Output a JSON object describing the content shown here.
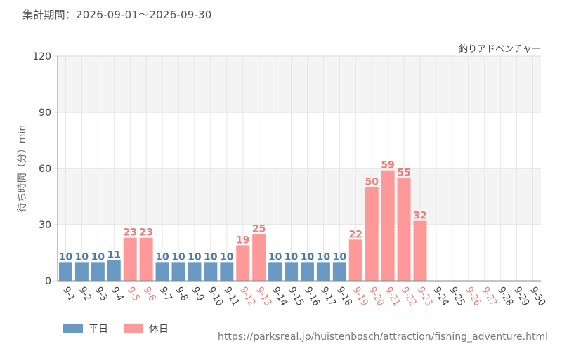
{
  "header": {
    "period": "集計期間：2026-09-01～2026-09-30"
  },
  "colors": {
    "weekday": "#6a9ac4",
    "holiday": "#ff9999",
    "weekday_label": "#4a7aa8",
    "holiday_label": "#f07b7b",
    "band": "#f4f4f4"
  },
  "legend": {
    "weekday": "平日",
    "holiday": "休日"
  },
  "source": "https://parksreal.jp/huistenbosch/attraction/fishing_adventure.html",
  "chart_data": {
    "type": "bar",
    "series_title": "釣りアドベンチャー",
    "ylabel": "待ち時間（分）min",
    "xlabel": "",
    "ylim": [
      0,
      120
    ],
    "yticks": [
      0,
      30,
      60,
      90,
      120
    ],
    "grid": true,
    "legend_position": "bottom-left",
    "categories": [
      "9-1",
      "9-2",
      "9-3",
      "9-4",
      "9-5",
      "9-6",
      "9-7",
      "9-8",
      "9-9",
      "9-10",
      "9-11",
      "9-12",
      "9-13",
      "9-14",
      "9-15",
      "9-16",
      "9-17",
      "9-18",
      "9-19",
      "9-20",
      "9-21",
      "9-22",
      "9-23",
      "9-24",
      "9-25",
      "9-26",
      "9-27",
      "9-28",
      "9-29",
      "9-30"
    ],
    "values": [
      10,
      10,
      10,
      11,
      23,
      23,
      10,
      10,
      10,
      10,
      10,
      19,
      25,
      10,
      10,
      10,
      10,
      10,
      22,
      50,
      59,
      55,
      32,
      null,
      null,
      null,
      null,
      null,
      null,
      null
    ],
    "day_type": [
      "weekday",
      "weekday",
      "weekday",
      "weekday",
      "holiday",
      "holiday",
      "weekday",
      "weekday",
      "weekday",
      "weekday",
      "weekday",
      "holiday",
      "holiday",
      "weekday",
      "weekday",
      "weekday",
      "weekday",
      "weekday",
      "holiday",
      "holiday",
      "holiday",
      "holiday",
      "holiday",
      "weekday",
      "weekday",
      "holiday",
      "holiday",
      "weekday",
      "weekday",
      "weekday"
    ]
  }
}
